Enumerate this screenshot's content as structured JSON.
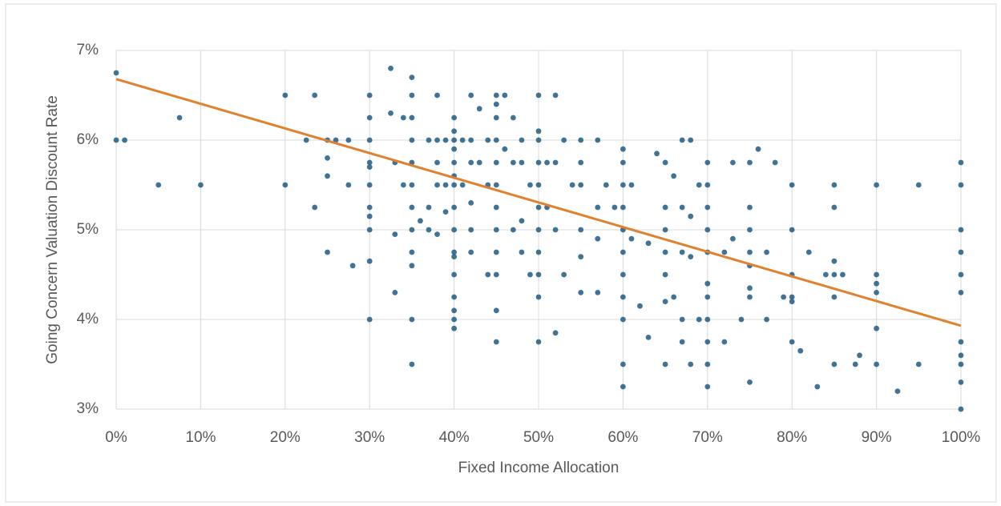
{
  "chart_data": {
    "type": "scatter",
    "x_label": "Fixed Income Allocation",
    "y_label": "Going Concern Valuation Discount Rate",
    "color": "#1f5a82",
    "x": [
      0,
      0,
      1,
      5,
      7.5,
      10,
      20,
      20,
      22.5,
      23.5,
      23.5,
      25,
      25,
      25,
      25,
      26,
      27.5,
      27.5,
      28,
      30,
      30,
      30,
      30,
      30,
      30,
      30,
      30,
      30,
      30,
      30,
      32.5,
      32.5,
      33,
      33,
      33,
      34,
      34,
      35,
      35,
      35,
      35,
      35,
      35,
      35,
      35,
      35,
      35,
      35,
      35,
      36,
      37,
      37,
      37,
      38,
      38,
      38,
      38,
      38,
      39,
      39,
      39,
      40,
      40,
      40,
      40,
      40,
      40,
      40,
      40,
      40,
      40,
      40,
      40,
      40,
      40,
      40,
      40,
      41,
      41,
      42,
      42,
      42,
      42,
      42,
      42,
      43,
      43,
      44,
      44,
      44,
      45,
      45,
      45,
      45,
      45,
      45,
      45,
      45,
      45,
      45,
      45,
      45,
      46,
      46,
      47,
      47,
      47,
      48,
      48,
      48,
      48,
      49,
      49,
      50,
      50,
      50,
      50,
      50,
      50,
      50,
      50,
      50,
      50,
      50,
      51,
      51,
      52,
      52,
      52,
      52,
      53,
      53,
      54,
      55,
      55,
      55,
      55,
      55,
      55,
      57,
      57,
      57,
      57,
      58,
      59,
      60,
      60,
      60,
      60,
      60,
      60,
      60,
      60,
      60,
      60,
      60,
      61,
      61,
      62,
      63,
      63,
      64,
      65,
      65,
      65,
      65,
      65,
      65,
      65,
      66,
      66,
      67,
      67,
      67,
      67,
      67,
      68,
      68,
      68,
      68,
      69,
      69,
      70,
      70,
      70,
      70,
      70,
      70,
      70,
      70,
      70,
      70,
      70,
      72,
      72,
      73,
      73,
      74,
      75,
      75,
      75,
      75,
      75,
      75,
      75,
      75,
      76,
      77,
      77,
      78,
      79,
      80,
      80,
      80,
      80,
      80,
      80,
      81,
      82,
      83,
      84,
      85,
      85,
      85,
      85,
      85,
      85,
      86,
      87.5,
      88,
      90,
      90,
      90,
      90,
      90,
      90,
      92.5,
      95,
      95,
      100,
      100,
      100,
      100,
      100,
      100,
      100,
      100,
      100,
      100,
      100
    ],
    "y": [
      6.75,
      6.0,
      6.0,
      5.5,
      6.25,
      5.5,
      6.5,
      5.5,
      6.0,
      6.5,
      5.25,
      6.0,
      5.8,
      5.6,
      4.75,
      6.0,
      6.0,
      5.5,
      4.6,
      6.5,
      6.25,
      6.0,
      5.75,
      5.7,
      5.5,
      5.25,
      5.15,
      5.0,
      4.65,
      4.0,
      6.8,
      6.3,
      5.75,
      4.95,
      4.3,
      6.25,
      5.5,
      6.7,
      6.5,
      6.25,
      6.0,
      5.75,
      5.5,
      5.25,
      5.0,
      4.75,
      4.6,
      4.0,
      3.5,
      5.1,
      6.0,
      5.25,
      5.0,
      6.5,
      6.0,
      5.75,
      5.5,
      4.95,
      6.0,
      5.5,
      5.2,
      6.25,
      6.1,
      6.0,
      5.9,
      5.75,
      5.6,
      5.5,
      5.25,
      5.0,
      4.75,
      4.7,
      4.5,
      4.25,
      4.1,
      4.0,
      3.9,
      6.0,
      5.5,
      6.5,
      6.0,
      5.75,
      5.3,
      5.0,
      4.75,
      6.35,
      5.75,
      6.0,
      5.5,
      4.5,
      6.5,
      6.4,
      6.25,
      6.0,
      5.75,
      5.5,
      5.25,
      5.0,
      4.75,
      4.5,
      4.1,
      3.75,
      6.5,
      5.9,
      6.25,
      5.75,
      5.0,
      6.0,
      5.75,
      5.1,
      4.75,
      5.5,
      4.5,
      6.5,
      6.1,
      6.0,
      5.75,
      5.5,
      5.25,
      5.0,
      4.75,
      4.5,
      4.25,
      3.75,
      5.75,
      5.25,
      6.5,
      5.75,
      5.0,
      3.85,
      6.0,
      4.5,
      5.5,
      6.0,
      5.75,
      5.5,
      5.0,
      4.7,
      4.3,
      6.0,
      5.25,
      4.9,
      4.3,
      5.5,
      5.25,
      5.9,
      5.75,
      5.5,
      5.25,
      5.0,
      4.75,
      4.5,
      4.25,
      4.0,
      3.5,
      3.25,
      5.5,
      4.9,
      4.15,
      4.85,
      3.8,
      5.85,
      5.75,
      5.25,
      5.0,
      4.75,
      4.5,
      4.2,
      3.5,
      5.6,
      4.25,
      6.0,
      5.25,
      4.75,
      4.0,
      3.75,
      6.0,
      5.15,
      4.7,
      3.5,
      5.5,
      4.0,
      5.75,
      5.5,
      5.25,
      5.0,
      4.75,
      4.4,
      4.25,
      4.0,
      3.75,
      3.5,
      3.25,
      4.75,
      3.75,
      5.75,
      4.9,
      4.0,
      5.75,
      5.25,
      5.0,
      4.75,
      4.6,
      4.35,
      4.25,
      3.3,
      5.9,
      4.75,
      4.0,
      5.75,
      4.25,
      5.5,
      5.0,
      4.5,
      4.25,
      4.2,
      3.75,
      3.65,
      4.75,
      3.25,
      4.5,
      5.5,
      5.25,
      4.65,
      4.5,
      4.25,
      3.5,
      4.5,
      3.5,
      3.6,
      5.5,
      4.5,
      4.4,
      4.3,
      3.9,
      3.5,
      3.2,
      5.5,
      3.5,
      5.75,
      5.5,
      5.0,
      4.75,
      4.5,
      4.3,
      3.75,
      3.6,
      3.5,
      3.3,
      3.0
    ],
    "trendline": {
      "x": [
        0,
        100
      ],
      "y": [
        6.68,
        3.93
      ],
      "color": "#e0812f"
    },
    "xlim": [
      0,
      100
    ],
    "xticks": [
      {
        "value": 0,
        "label": "0%"
      },
      {
        "value": 10,
        "label": "10%"
      },
      {
        "value": 20,
        "label": "20%"
      },
      {
        "value": 30,
        "label": "30%"
      },
      {
        "value": 40,
        "label": "40%"
      },
      {
        "value": 50,
        "label": "50%"
      },
      {
        "value": 60,
        "label": "60%"
      },
      {
        "value": 70,
        "label": "70%"
      },
      {
        "value": 80,
        "label": "80%"
      },
      {
        "value": 90,
        "label": "90%"
      },
      {
        "value": 100,
        "label": "100%"
      }
    ],
    "ylim": [
      3,
      7
    ],
    "yticks": [
      {
        "value": 3,
        "label": "3%"
      },
      {
        "value": 4,
        "label": "4%"
      },
      {
        "value": 5,
        "label": "5%"
      },
      {
        "value": 6,
        "label": "6%"
      },
      {
        "value": 7,
        "label": "7%"
      }
    ],
    "grid": true
  }
}
